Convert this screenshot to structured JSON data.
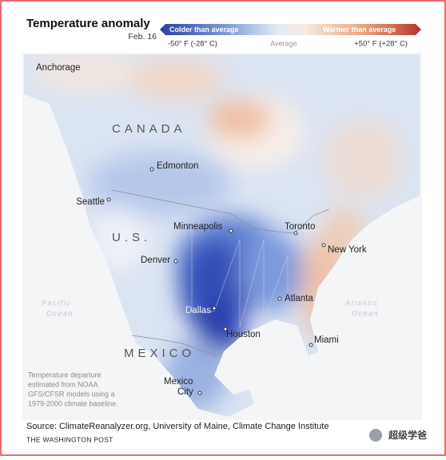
{
  "header": {
    "title": "Temperature anomaly",
    "date": "Feb. 16"
  },
  "legend": {
    "colder": "Colder than average",
    "warmer": "Warmer than average",
    "min_label": "-50° F (-28° C)",
    "mid_label": "Average",
    "max_label": "+50° F (+28° C)"
  },
  "map": {
    "countries": [
      "CANADA",
      "U.S.",
      "MEXICO"
    ],
    "oceans": [
      [
        "Pacific",
        "Ocean"
      ],
      [
        "Atlantic",
        "Ocean"
      ]
    ],
    "cities": [
      "Anchorage",
      "Edmonton",
      "Seattle",
      "Minneapolis",
      "Toronto",
      "New York",
      "Denver",
      "Atlanta",
      "Dallas",
      "Houston",
      "Miami",
      [
        "Mexico",
        "City"
      ]
    ]
  },
  "note": [
    "Temperature departure",
    "estimated from NOAA",
    "GFS/CFSR models using a",
    "1979-2000 climate baseline."
  ],
  "source": "Source: ClimateReanalyzer.org, University of Maine, Climate Change Institute",
  "credit": "THE WASHINGTON POST",
  "watermark": "超级学爸"
}
